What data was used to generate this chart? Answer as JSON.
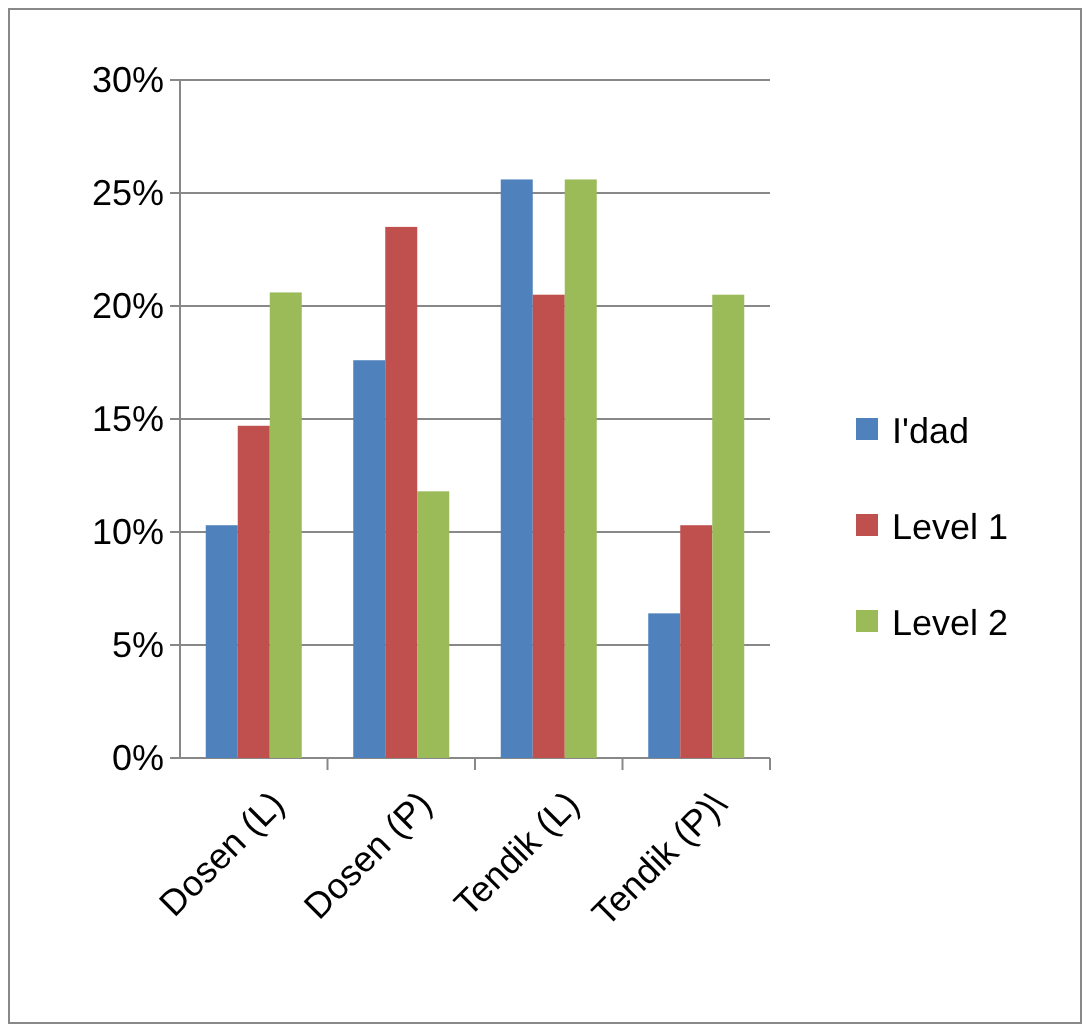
{
  "chart_data": {
    "type": "bar",
    "categories": [
      "Dosen (L)",
      "Dosen (P)",
      "Tendik (L)",
      "Tendik (P)\\"
    ],
    "series": [
      {
        "name": "I'dad",
        "color": "#4f81bd",
        "values": [
          10.3,
          17.6,
          25.6,
          6.4
        ]
      },
      {
        "name": "Level 1",
        "color": "#c0504d",
        "values": [
          14.7,
          23.5,
          20.5,
          10.3
        ]
      },
      {
        "name": "Level 2",
        "color": "#9bbb59",
        "values": [
          20.6,
          11.8,
          25.6,
          20.5
        ]
      }
    ],
    "ylim": [
      0,
      30
    ],
    "yticks": [
      {
        "value": 0,
        "label": "0%"
      },
      {
        "value": 5,
        "label": "5%"
      },
      {
        "value": 10,
        "label": "10%"
      },
      {
        "value": 15,
        "label": "15%"
      },
      {
        "value": 20,
        "label": "20%"
      },
      {
        "value": 25,
        "label": "25%"
      },
      {
        "value": 30,
        "label": "30%"
      }
    ],
    "grid": "y",
    "legend": "right"
  }
}
